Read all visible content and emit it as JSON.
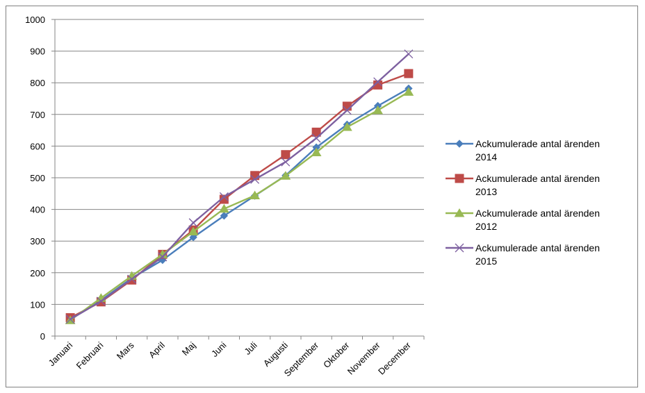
{
  "chart_data": {
    "type": "line",
    "title": "",
    "xlabel": "",
    "ylabel": "",
    "ylim": [
      0,
      1000
    ],
    "yticks": [
      0,
      100,
      200,
      300,
      400,
      500,
      600,
      700,
      800,
      900,
      1000
    ],
    "grid": true,
    "legend_position": "right",
    "categories": [
      "Januari",
      "Februari",
      "Mars",
      "April",
      "Maj",
      "Juni",
      "Juli",
      "Augusti",
      "September",
      "Oktober",
      "November",
      "December"
    ],
    "series": [
      {
        "name": "Ackumulerade antal ärenden 2014",
        "name_lines": [
          "Ackumulerade antal ärenden",
          "2014"
        ],
        "color": "#4a7ebb",
        "marker": "diamond",
        "values": [
          55,
          113,
          183,
          240,
          312,
          380,
          443,
          507,
          596,
          668,
          727,
          782
        ]
      },
      {
        "name": "Ackumulerade antal ärenden 2013",
        "name_lines": [
          "Ackumulerade antal ärenden",
          "2013"
        ],
        "color": "#be4b48",
        "marker": "square",
        "values": [
          58,
          108,
          177,
          258,
          335,
          432,
          507,
          573,
          644,
          726,
          793,
          829
        ]
      },
      {
        "name": "Ackumulerade antal ärenden 2012",
        "name_lines": [
          "Ackumulerade antal ärenden",
          "2012"
        ],
        "color": "#98b954",
        "marker": "triangle",
        "values": [
          50,
          120,
          190,
          258,
          330,
          402,
          444,
          506,
          580,
          660,
          713,
          771
        ]
      },
      {
        "name": "Ackumulerade antal ärenden 2015",
        "name_lines": [
          "Ackumulerade antal ärenden",
          "2015"
        ],
        "color": "#7d60a0",
        "marker": "x",
        "values": [
          53,
          110,
          180,
          250,
          358,
          440,
          495,
          550,
          625,
          713,
          803,
          891
        ]
      }
    ]
  }
}
